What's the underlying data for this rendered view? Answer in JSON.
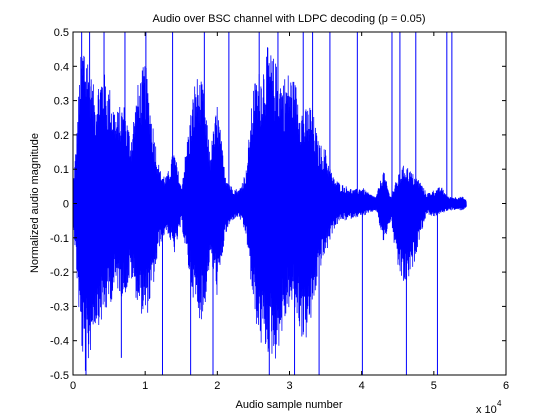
{
  "chart_data": {
    "type": "line",
    "title": "Audio over BSC channel with LDPC decoding (p = 0.05)",
    "xlabel": "Audio sample number",
    "ylabel": "Normalized audio magnitude",
    "x_multiplier_label": "x 10",
    "x_multiplier_exponent": "4",
    "xlim": [
      0,
      60000
    ],
    "ylim": [
      -0.5,
      0.5
    ],
    "x_ticks": [
      0,
      10000,
      20000,
      30000,
      40000,
      50000,
      60000
    ],
    "x_tick_labels": [
      "0",
      "1",
      "2",
      "3",
      "4",
      "5",
      "6"
    ],
    "y_ticks": [
      -0.5,
      -0.4,
      -0.3,
      -0.2,
      -0.1,
      0,
      0.1,
      0.2,
      0.3,
      0.4,
      0.5
    ],
    "y_tick_labels": [
      "-0.5",
      "-0.4",
      "-0.3",
      "-0.2",
      "-0.1",
      "0",
      "0.1",
      "0.2",
      "0.3",
      "0.4",
      "0.5"
    ],
    "grid": false,
    "series_color": "#0000ff",
    "series": [
      {
        "name": "",
        "sample_count": 54500,
        "envelope_x": [
          0,
          500,
          1000,
          1500,
          2000,
          2500,
          3000,
          4000,
          5000,
          6000,
          7000,
          8000,
          9000,
          10000,
          11000,
          12000,
          13000,
          14000,
          15000,
          16000,
          17000,
          18000,
          19000,
          20000,
          21000,
          22000,
          23000,
          24000,
          25000,
          26000,
          27000,
          28000,
          29000,
          30000,
          31000,
          32000,
          33000,
          34000,
          35000,
          36000,
          37000,
          38000,
          39000,
          40000,
          41000,
          42000,
          43000,
          44000,
          45000,
          46000,
          47000,
          48000,
          49000,
          50000,
          51000,
          52000,
          53000,
          54000,
          54500
        ],
        "envelope_upper": [
          0.05,
          0.2,
          0.42,
          0.5,
          0.45,
          0.38,
          0.33,
          0.4,
          0.35,
          0.27,
          0.3,
          0.2,
          0.35,
          0.42,
          0.25,
          0.1,
          0.08,
          0.16,
          0.05,
          0.22,
          0.38,
          0.35,
          0.15,
          0.3,
          0.1,
          0.05,
          0.04,
          0.1,
          0.35,
          0.4,
          0.46,
          0.42,
          0.37,
          0.39,
          0.35,
          0.27,
          0.3,
          0.18,
          0.16,
          0.08,
          0.06,
          0.05,
          0.04,
          0.05,
          0.03,
          0.02,
          0.1,
          0.02,
          0.08,
          0.12,
          0.09,
          0.07,
          0.03,
          0.04,
          0.05,
          0.02,
          0.02,
          0.02,
          0.01
        ],
        "envelope_lower": [
          -0.05,
          -0.22,
          -0.4,
          -0.5,
          -0.5,
          -0.42,
          -0.36,
          -0.35,
          -0.3,
          -0.25,
          -0.28,
          -0.22,
          -0.3,
          -0.35,
          -0.26,
          -0.12,
          -0.08,
          -0.15,
          -0.06,
          -0.2,
          -0.32,
          -0.35,
          -0.16,
          -0.28,
          -0.1,
          -0.05,
          -0.04,
          -0.1,
          -0.32,
          -0.42,
          -0.44,
          -0.46,
          -0.38,
          -0.3,
          -0.34,
          -0.42,
          -0.35,
          -0.2,
          -0.15,
          -0.08,
          -0.05,
          -0.05,
          -0.04,
          -0.04,
          -0.03,
          -0.02,
          -0.12,
          -0.05,
          -0.2,
          -0.25,
          -0.2,
          -0.1,
          -0.03,
          -0.04,
          -0.03,
          -0.02,
          -0.02,
          -0.02,
          -0.01
        ],
        "spike_x": [
          1200,
          1800,
          2300,
          4300,
          6700,
          7200,
          10100,
          12400,
          13800,
          16300,
          18200,
          19400,
          21600,
          25800,
          27200,
          28400,
          30700,
          31900,
          33200,
          34100,
          35600,
          39400,
          40100,
          44200,
          45300,
          46200,
          47500,
          50500,
          51800,
          52500
        ],
        "spike_y": [
          0.5,
          -0.5,
          0.5,
          0.5,
          -0.45,
          0.5,
          0.5,
          -0.5,
          0.5,
          -0.5,
          0.5,
          -0.5,
          0.5,
          0.5,
          -0.5,
          0.5,
          -0.5,
          0.5,
          0.5,
          -0.5,
          0.5,
          0.5,
          -0.5,
          0.5,
          0.5,
          -0.5,
          0.5,
          -0.5,
          0.5,
          0.5
        ]
      }
    ]
  }
}
